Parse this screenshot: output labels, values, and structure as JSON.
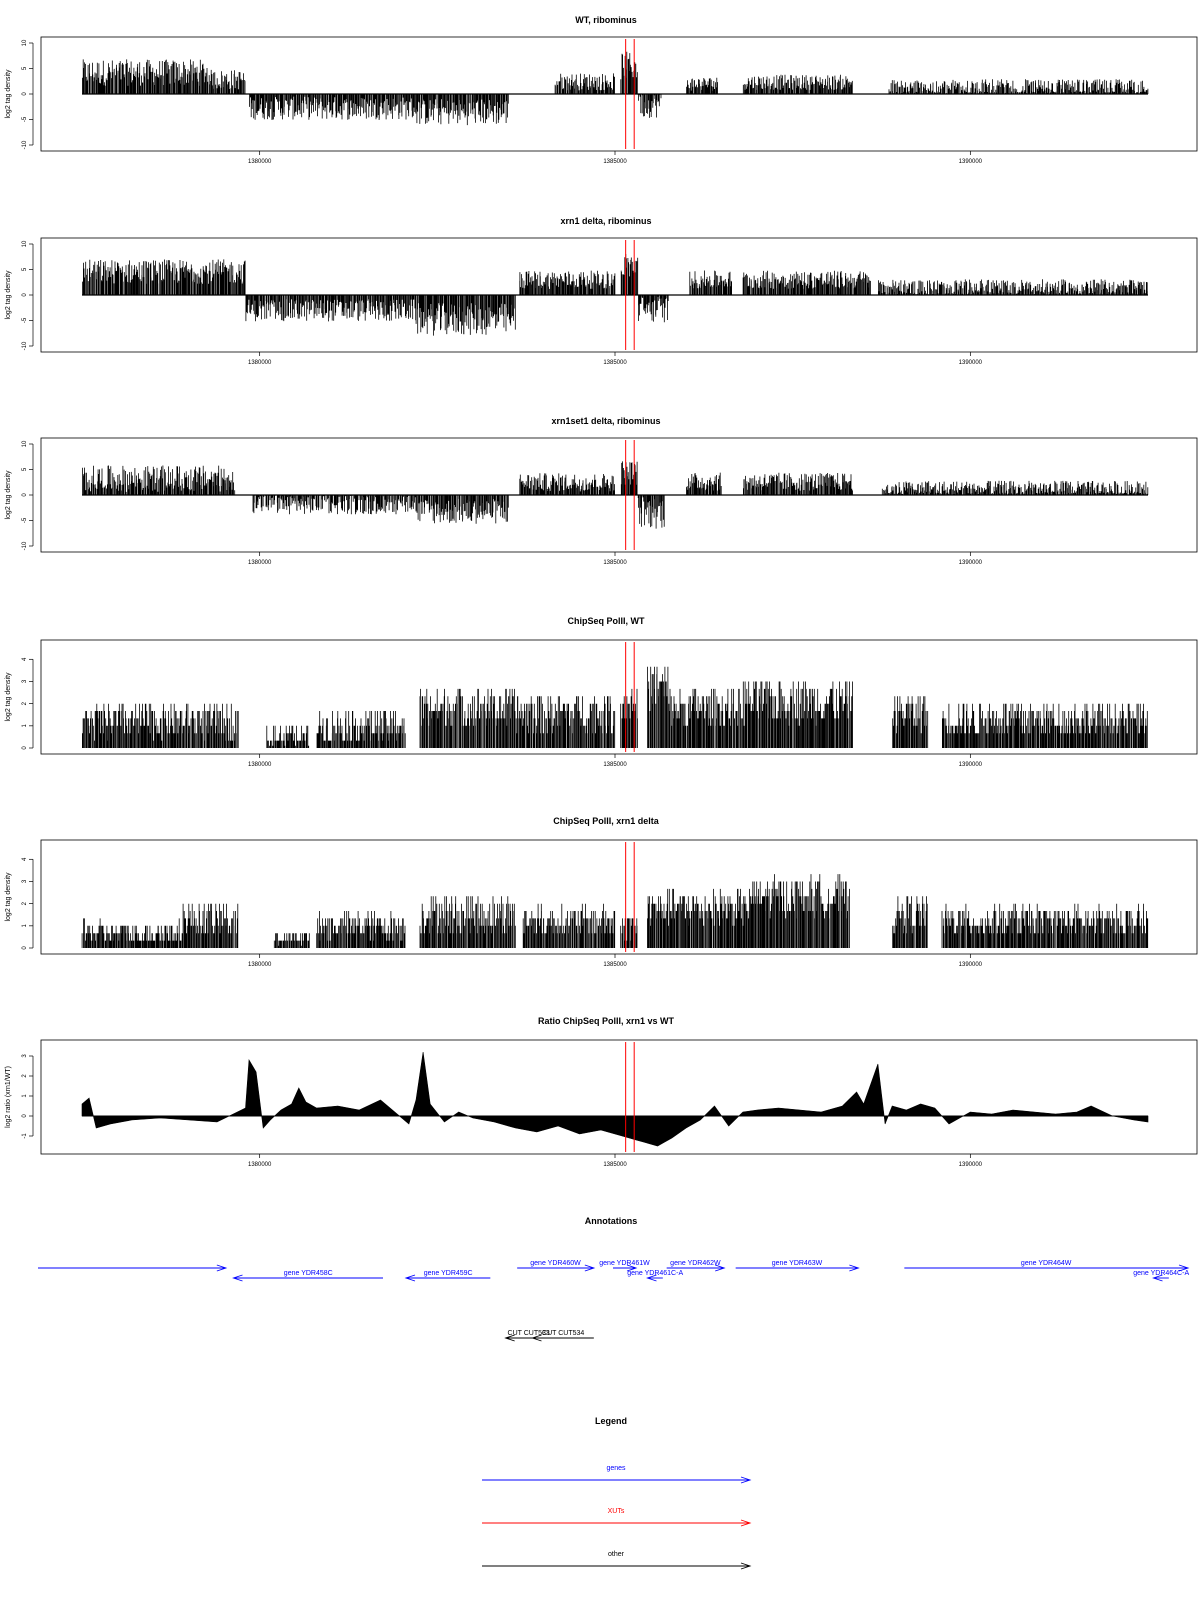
{
  "colors": {
    "gene": "#0000ff",
    "xut": "#ff0000",
    "other": "#000000",
    "signal": "#000000",
    "marker": "#ff0000"
  },
  "chart_data": [
    {
      "type": "bar",
      "title": "WT, ribominus",
      "ylabel": "log2 tag density",
      "xlim": [
        1377500,
        1392500
      ],
      "ylim": [
        -10,
        10
      ],
      "yticks": [
        -10,
        -5,
        0,
        5,
        10
      ],
      "xticks": [
        1380000,
        1385000,
        1390000
      ],
      "marker_positions": [
        1385150,
        1385270
      ],
      "segments": [
        {
          "from": 1377500,
          "to": 1379300,
          "level": 4.2,
          "amp": 2.6
        },
        {
          "from": 1379300,
          "to": 1379800,
          "level": 2.8,
          "amp": 2.0
        },
        {
          "from": 1379850,
          "to": 1382200,
          "level": -2.8,
          "amp": 2.3
        },
        {
          "from": 1382200,
          "to": 1383500,
          "level": -3.5,
          "amp": 2.6
        },
        {
          "from": 1384150,
          "to": 1385000,
          "level": 2.4,
          "amp": 1.7
        },
        {
          "from": 1385080,
          "to": 1385320,
          "level": 5.5,
          "amp": 2.8
        },
        {
          "from": 1385320,
          "to": 1385650,
          "level": -2.2,
          "amp": 2.5
        },
        {
          "from": 1386000,
          "to": 1386450,
          "level": 2.0,
          "amp": 1.4
        },
        {
          "from": 1386800,
          "to": 1388350,
          "level": 2.3,
          "amp": 1.5
        },
        {
          "from": 1388850,
          "to": 1392500,
          "level": 1.2,
          "amp": 1.7
        }
      ]
    },
    {
      "type": "bar",
      "title": "xrn1 delta, ribominus",
      "ylabel": "log2 tag density",
      "xlim": [
        1377500,
        1392500
      ],
      "ylim": [
        -10,
        10
      ],
      "yticks": [
        -10,
        -5,
        0,
        5,
        10
      ],
      "xticks": [
        1380000,
        1385000,
        1390000
      ],
      "marker_positions": [
        1385150,
        1385270
      ],
      "segments": [
        {
          "from": 1377500,
          "to": 1379800,
          "level": 4.6,
          "amp": 2.4
        },
        {
          "from": 1379800,
          "to": 1382200,
          "level": -3.0,
          "amp": 2.2
        },
        {
          "from": 1382200,
          "to": 1383600,
          "level": -4.8,
          "amp": 3.2
        },
        {
          "from": 1383650,
          "to": 1385000,
          "level": 3.0,
          "amp": 1.8
        },
        {
          "from": 1385080,
          "to": 1385320,
          "level": 5.8,
          "amp": 2.5
        },
        {
          "from": 1385320,
          "to": 1385750,
          "level": -2.8,
          "amp": 2.6
        },
        {
          "from": 1386050,
          "to": 1386650,
          "level": 3.0,
          "amp": 1.8
        },
        {
          "from": 1386800,
          "to": 1388600,
          "level": 3.0,
          "amp": 1.8
        },
        {
          "from": 1388700,
          "to": 1392500,
          "level": 1.5,
          "amp": 1.6
        }
      ]
    },
    {
      "type": "bar",
      "title": "xrn1set1 delta, ribominus",
      "ylabel": "log2 tag density",
      "xlim": [
        1377500,
        1392500
      ],
      "ylim": [
        -10,
        10
      ],
      "yticks": [
        -10,
        -5,
        0,
        5,
        10
      ],
      "xticks": [
        1380000,
        1385000,
        1390000
      ],
      "marker_positions": [
        1385150,
        1385270
      ],
      "segments": [
        {
          "from": 1377500,
          "to": 1379650,
          "level": 3.2,
          "amp": 2.6
        },
        {
          "from": 1379900,
          "to": 1382200,
          "level": -1.8,
          "amp": 2.0
        },
        {
          "from": 1382200,
          "to": 1383500,
          "level": -3.2,
          "amp": 2.5
        },
        {
          "from": 1383650,
          "to": 1385000,
          "level": 2.5,
          "amp": 1.8
        },
        {
          "from": 1385080,
          "to": 1385320,
          "level": 4.4,
          "amp": 2.5
        },
        {
          "from": 1385320,
          "to": 1385700,
          "level": -3.4,
          "amp": 3.2
        },
        {
          "from": 1386000,
          "to": 1386500,
          "level": 2.6,
          "amp": 1.8
        },
        {
          "from": 1386800,
          "to": 1388350,
          "level": 2.6,
          "amp": 1.8
        },
        {
          "from": 1388750,
          "to": 1392500,
          "level": 1.3,
          "amp": 1.5
        }
      ]
    },
    {
      "type": "bar",
      "title": "ChipSeq PolII, WT",
      "ylabel": "log2 tag density",
      "xlim": [
        1377500,
        1392500
      ],
      "ylim": [
        0,
        4.6
      ],
      "yticks": [
        0,
        1,
        2,
        3,
        4
      ],
      "xticks": [
        1380000,
        1385000,
        1390000
      ],
      "marker_positions": [
        1385150,
        1385270
      ],
      "segments": [
        {
          "from": 1377500,
          "to": 1379700,
          "level": 1.2,
          "amp": 0.8
        },
        {
          "from": 1380100,
          "to": 1380700,
          "level": 0.5,
          "amp": 0.5
        },
        {
          "from": 1380800,
          "to": 1382050,
          "level": 1.0,
          "amp": 0.8
        },
        {
          "from": 1382250,
          "to": 1383600,
          "level": 1.8,
          "amp": 0.9
        },
        {
          "from": 1383600,
          "to": 1385000,
          "level": 1.6,
          "amp": 0.9
        },
        {
          "from": 1385080,
          "to": 1385320,
          "level": 2.0,
          "amp": 0.9
        },
        {
          "from": 1385450,
          "to": 1385750,
          "level": 2.8,
          "amp": 1.0
        },
        {
          "from": 1385750,
          "to": 1386800,
          "level": 1.8,
          "amp": 0.9
        },
        {
          "from": 1386800,
          "to": 1388350,
          "level": 2.1,
          "amp": 1.0
        },
        {
          "from": 1388900,
          "to": 1389400,
          "level": 1.6,
          "amp": 0.8
        },
        {
          "from": 1389600,
          "to": 1392500,
          "level": 1.3,
          "amp": 0.8
        }
      ]
    },
    {
      "type": "bar",
      "title": "ChipSeq PolII, xrn1 delta",
      "ylabel": "log2 tag density",
      "xlim": [
        1377500,
        1392500
      ],
      "ylim": [
        0,
        4.6
      ],
      "yticks": [
        0,
        1,
        2,
        3,
        4
      ],
      "xticks": [
        1380000,
        1385000,
        1390000
      ],
      "marker_positions": [
        1385150,
        1385270
      ],
      "segments": [
        {
          "from": 1377500,
          "to": 1378900,
          "level": 0.7,
          "amp": 0.5
        },
        {
          "from": 1378900,
          "to": 1379700,
          "level": 1.3,
          "amp": 0.8
        },
        {
          "from": 1380200,
          "to": 1380700,
          "level": 0.4,
          "amp": 0.4
        },
        {
          "from": 1380800,
          "to": 1382050,
          "level": 1.0,
          "amp": 0.6
        },
        {
          "from": 1382250,
          "to": 1383600,
          "level": 1.5,
          "amp": 0.9
        },
        {
          "from": 1383700,
          "to": 1385000,
          "level": 1.2,
          "amp": 0.7
        },
        {
          "from": 1385080,
          "to": 1385320,
          "level": 1.0,
          "amp": 0.6
        },
        {
          "from": 1385450,
          "to": 1386900,
          "level": 1.8,
          "amp": 0.8
        },
        {
          "from": 1386900,
          "to": 1388300,
          "level": 2.3,
          "amp": 0.9
        },
        {
          "from": 1388900,
          "to": 1389400,
          "level": 1.5,
          "amp": 0.8
        },
        {
          "from": 1389600,
          "to": 1392500,
          "level": 1.2,
          "amp": 0.7
        }
      ]
    },
    {
      "type": "area",
      "title": "Ratio ChipSeq PolII, xrn1 vs WT",
      "ylabel": "log2 ratio (xrn1/WT)",
      "xlim": [
        1377500,
        1392500
      ],
      "ylim": [
        -1.6,
        3.5
      ],
      "yticks": [
        -1,
        0,
        1,
        2,
        3
      ],
      "xticks": [
        1380000,
        1385000,
        1390000
      ],
      "marker_positions": [
        1385150,
        1385270
      ],
      "x": [
        1377500,
        1377600,
        1377700,
        1377900,
        1378200,
        1378600,
        1379000,
        1379400,
        1379800,
        1379850,
        1379950,
        1380050,
        1380150,
        1380300,
        1380450,
        1380550,
        1380650,
        1380800,
        1381100,
        1381400,
        1381700,
        1381900,
        1382100,
        1382200,
        1382300,
        1382400,
        1382600,
        1382800,
        1383000,
        1383300,
        1383600,
        1383900,
        1384200,
        1384500,
        1384800,
        1385000,
        1385200,
        1385400,
        1385600,
        1385800,
        1386000,
        1386200,
        1386400,
        1386600,
        1386800,
        1387000,
        1387300,
        1387600,
        1387900,
        1388200,
        1388400,
        1388500,
        1388700,
        1388800,
        1388900,
        1389100,
        1389300,
        1389500,
        1389700,
        1390000,
        1390300,
        1390600,
        1390900,
        1391200,
        1391500,
        1391700,
        1392000,
        1392300,
        1392500
      ],
      "y": [
        0.6,
        0.9,
        -0.6,
        -0.4,
        -0.2,
        -0.1,
        -0.2,
        -0.3,
        0.4,
        2.8,
        2.2,
        -0.6,
        -0.2,
        0.3,
        0.6,
        1.4,
        0.7,
        0.4,
        0.5,
        0.3,
        0.8,
        0.2,
        -0.4,
        0.8,
        3.2,
        0.6,
        -0.3,
        0.2,
        -0.1,
        -0.3,
        -0.6,
        -0.8,
        -0.5,
        -0.9,
        -0.7,
        -0.9,
        -1.1,
        -1.3,
        -1.5,
        -1.1,
        -0.6,
        -0.2,
        0.5,
        -0.5,
        0.2,
        0.3,
        0.4,
        0.3,
        0.2,
        0.5,
        1.2,
        0.6,
        2.6,
        -0.4,
        0.5,
        0.3,
        0.6,
        0.4,
        -0.4,
        0.2,
        0.1,
        0.3,
        0.2,
        0.1,
        0.2,
        0.5,
        0.0,
        -0.2,
        -0.3
      ]
    }
  ],
  "annotations_panel": {
    "title": "Annotations",
    "xlim": [
      1377500,
      1392500
    ],
    "features": [
      {
        "label": "",
        "from": 1377500,
        "to": 1379950,
        "strand": "+",
        "kind": "gene",
        "row": 0
      },
      {
        "label": "gene YDR458C",
        "from": 1380050,
        "to": 1382000,
        "strand": "-",
        "kind": "gene",
        "row": 1
      },
      {
        "label": "gene YDR459C",
        "from": 1382300,
        "to": 1383400,
        "strand": "-",
        "kind": "gene",
        "row": 1
      },
      {
        "label": "gene YDR460W",
        "from": 1383750,
        "to": 1384750,
        "strand": "+",
        "kind": "gene",
        "row": 0
      },
      {
        "label": "gene YDR461W",
        "from": 1385000,
        "to": 1385300,
        "strand": "+",
        "kind": "gene",
        "row": 0
      },
      {
        "label": "gene YDR461C-A",
        "from": 1385450,
        "to": 1385650,
        "strand": "-",
        "kind": "gene",
        "row": 1
      },
      {
        "label": "gene YDR462W",
        "from": 1385700,
        "to": 1386450,
        "strand": "+",
        "kind": "gene",
        "row": 0
      },
      {
        "label": "gene YDR463W",
        "from": 1386600,
        "to": 1388200,
        "strand": "+",
        "kind": "gene",
        "row": 0
      },
      {
        "label": "gene YDR464W",
        "from": 1388800,
        "to": 1392500,
        "strand": "+",
        "kind": "gene",
        "row": 0
      },
      {
        "label": "gene YDR464C-A",
        "from": 1392050,
        "to": 1392250,
        "strand": "-",
        "kind": "gene",
        "row": 1
      },
      {
        "label": "CUT CUT533",
        "from": 1383600,
        "to": 1384200,
        "strand": "-",
        "kind": "other",
        "row": 2
      },
      {
        "label": "CUT CUT534",
        "from": 1383950,
        "to": 1384750,
        "strand": "-",
        "kind": "other",
        "row": 2
      }
    ]
  },
  "legend": {
    "title": "Legend",
    "items": [
      {
        "label": "genes",
        "kind": "gene"
      },
      {
        "label": "XUTs",
        "kind": "xut"
      },
      {
        "label": "other",
        "kind": "other"
      }
    ]
  }
}
